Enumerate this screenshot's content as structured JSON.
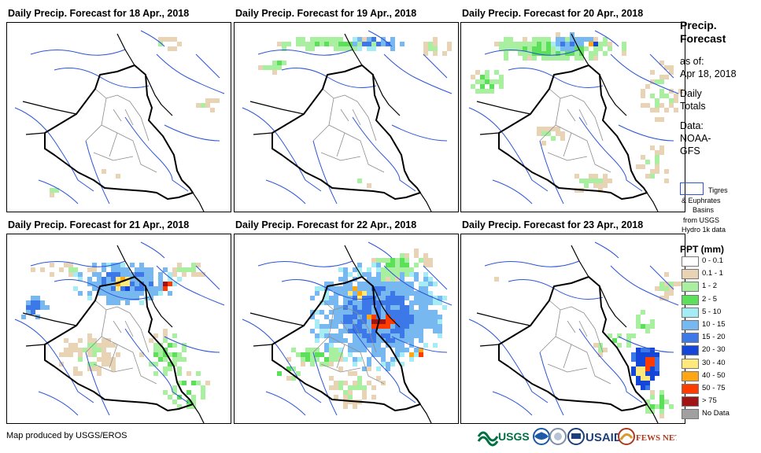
{
  "panels": [
    {
      "title": "Daily Precip. Forecast for 18 Apr., 2018"
    },
    {
      "title": "Daily Precip. Forecast for 19 Apr., 2018"
    },
    {
      "title": "Daily Precip. Forecast for 20 Apr., 2018"
    },
    {
      "title": "Daily Precip. Forecast for 21 Apr., 2018"
    },
    {
      "title": "Daily Precip. Forecast for 22 Apr., 2018"
    },
    {
      "title": "Daily Precip. Forecast for 23 Apr., 2018"
    }
  ],
  "legend": {
    "title_line1": "Precip.",
    "title_line2": "Forecast",
    "asof_label": "as of:",
    "asof_date": "Apr 18, 2018",
    "totals_line1": "Daily",
    "totals_line2": "Totals",
    "data_label": "Data:",
    "data_source_line1": "NOAA-",
    "data_source_line2": "GFS",
    "basin_line1": "Tigres",
    "basin_line2": "& Euphrates",
    "basin_line3": "Basins",
    "basin_line4": "from USGS",
    "basin_line5": "Hydro 1k data",
    "basin_color": "#2b55d6",
    "ppt_title": "PPT (mm)",
    "ppt_classes": [
      {
        "label": "0 - 0.1",
        "color": "#ffffff"
      },
      {
        "label": "0.1 - 1",
        "color": "#e8d4b4"
      },
      {
        "label": "1 - 2",
        "color": "#a8f0a0"
      },
      {
        "label": "2 - 5",
        "color": "#5ce05a"
      },
      {
        "label": "5 - 10",
        "color": "#a6ecf4"
      },
      {
        "label": "10 - 15",
        "color": "#78b8f0"
      },
      {
        "label": "15 - 20",
        "color": "#3c78e8"
      },
      {
        "label": "20 - 30",
        "color": "#1446d8"
      },
      {
        "label": "30 - 40",
        "color": "#ffe87c"
      },
      {
        "label": "40 - 50",
        "color": "#ffa614"
      },
      {
        "label": "50 - 75",
        "color": "#ff3c00"
      },
      {
        "label": "> 75",
        "color": "#a01414"
      },
      {
        "label": "No Data",
        "color": "#a0a0a0"
      }
    ]
  },
  "credit": "Map produced by USGS/EROS",
  "logos": [
    {
      "name": "usgs-logo",
      "text": "USGS",
      "color": "#006f41"
    },
    {
      "name": "noaa-logo",
      "text": "",
      "color": "#1c5aa8"
    },
    {
      "name": "usaid-logo",
      "text": "USAID",
      "color": "#c8102e"
    },
    {
      "name": "fewsnet-logo",
      "text": "FEWS NET",
      "color": "#b03a1e"
    }
  ]
}
